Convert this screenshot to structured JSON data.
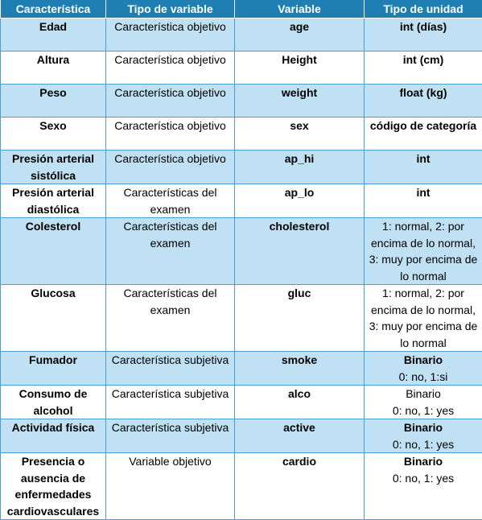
{
  "headers": [
    "Característica",
    "Tipo de variable",
    "Variable",
    "Tipo de unidad"
  ],
  "rows": [
    {
      "feature": "Edad",
      "type": "Característica objetivo",
      "variable": "age",
      "unit": "int (días)",
      "unit_sub": ""
    },
    {
      "feature": "Altura",
      "type": "Característica objetivo",
      "variable": "Height",
      "unit": "int (cm)",
      "unit_sub": ""
    },
    {
      "feature": "Peso",
      "type": "Característica objetivo",
      "variable": "weight",
      "unit": "float (kg)",
      "unit_sub": ""
    },
    {
      "feature": "Sexo",
      "type": "Característica objetivo",
      "variable": "sex",
      "unit": "código de categoría",
      "unit_sub": ""
    },
    {
      "feature": "Presión arterial sistólica",
      "type": "Característica objetivo",
      "variable": "ap_hi",
      "unit": "int",
      "unit_sub": ""
    },
    {
      "feature": "Presión arterial diastólica",
      "type": "Características del examen",
      "variable": "ap_lo",
      "unit": "int",
      "unit_sub": ""
    },
    {
      "feature": "Colesterol",
      "type": "Características del examen",
      "variable": "cholesterol",
      "unit": "1: normal, 2: por encima de lo normal, 3: muy por encima de lo normal",
      "unit_sub": ""
    },
    {
      "feature": "Glucosa",
      "type": "Características del examen",
      "variable": "gluc",
      "unit": "1: normal, 2: por encima de lo normal, 3: muy por encima de lo normal",
      "unit_sub": ""
    },
    {
      "feature": "Fumador",
      "type": "Característica subjetiva",
      "variable": "smoke",
      "unit": "Binario",
      "unit_sub": "0: no, 1:si"
    },
    {
      "feature": "Consumo de alcohol",
      "type": "Característica subjetiva",
      "variable": "alco",
      "unit": "Binario",
      "unit_sub": "0: no, 1: yes"
    },
    {
      "feature": "Actividad física",
      "type": "Característica subjetiva",
      "variable": "active",
      "unit": "Binario",
      "unit_sub": "0: no, 1: yes"
    },
    {
      "feature": "Presencia o ausencia de enfermedades cardiovasculares",
      "type": "Variable objetivo",
      "variable": "cardio",
      "unit": "Binario",
      "unit_sub": "0: no, 1: yes"
    }
  ]
}
